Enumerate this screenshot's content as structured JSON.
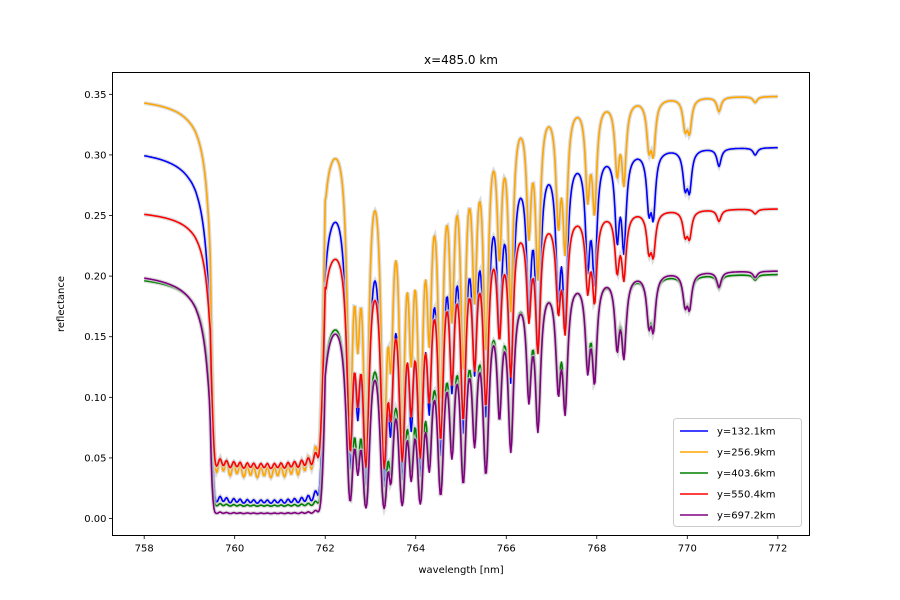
{
  "chart_data": {
    "type": "line",
    "title": "x=485.0 km",
    "xlabel": "wavelength [nm]",
    "ylabel": "reflectance",
    "xlim": [
      757.3,
      772.7
    ],
    "ylim": [
      -0.014,
      0.368
    ],
    "x_ticks": [
      758,
      760,
      762,
      764,
      766,
      768,
      770,
      772
    ],
    "x_tick_labels": [
      "758",
      "760",
      "762",
      "764",
      "766",
      "768",
      "770",
      "772"
    ],
    "y_ticks": [
      0.0,
      0.05,
      0.1,
      0.15,
      0.2,
      0.25,
      0.3,
      0.35
    ],
    "y_tick_labels": [
      "0.00",
      "0.05",
      "0.10",
      "0.15",
      "0.20",
      "0.25",
      "0.30",
      "0.35"
    ],
    "grid": false,
    "legend_position": "lower-right",
    "x_range": [
      758.0,
      772.0
    ],
    "band_edge_nm": 759.45,
    "series": [
      {
        "name": "y=132.1km",
        "color": "#0000ff",
        "baseline": 0.307,
        "path_factor": 1.0,
        "band_floor": 0.012
      },
      {
        "name": "y=256.9km",
        "color": "#ffa500",
        "baseline": 0.349,
        "path_factor": 0.72,
        "band_floor": 0.03
      },
      {
        "name": "y=403.6km",
        "color": "#008000",
        "baseline": 0.202,
        "path_factor": 1.15,
        "band_floor": 0.01
      },
      {
        "name": "y=550.4km",
        "color": "#ff0000",
        "baseline": 0.256,
        "path_factor": 0.82,
        "band_floor": 0.04
      },
      {
        "name": "y=697.2km",
        "color": "#800080",
        "baseline": 0.205,
        "path_factor": 1.3,
        "band_floor": 0.004
      }
    ],
    "absorption_lines_nm": [
      [
        759.6,
        3.0
      ],
      [
        759.75,
        2.4
      ],
      [
        759.9,
        3.2
      ],
      [
        760.05,
        2.6
      ],
      [
        760.2,
        3.4
      ],
      [
        760.35,
        2.8
      ],
      [
        760.5,
        3.5
      ],
      [
        760.65,
        2.9
      ],
      [
        760.8,
        3.5
      ],
      [
        760.95,
        2.9
      ],
      [
        761.1,
        3.3
      ],
      [
        761.25,
        2.7
      ],
      [
        761.4,
        3.0
      ],
      [
        761.55,
        2.4
      ],
      [
        761.7,
        2.4
      ],
      [
        761.85,
        1.6
      ],
      [
        762.55,
        1.9
      ],
      [
        762.72,
        0.9
      ],
      [
        762.9,
        2.3
      ],
      [
        763.3,
        2.3
      ],
      [
        763.45,
        1.1
      ],
      [
        763.7,
        2.1
      ],
      [
        763.9,
        1.1
      ],
      [
        764.1,
        2.0
      ],
      [
        764.3,
        1.0
      ],
      [
        764.55,
        1.7
      ],
      [
        764.8,
        0.9
      ],
      [
        765.05,
        1.4
      ],
      [
        765.3,
        0.8
      ],
      [
        765.55,
        1.25
      ],
      [
        765.85,
        0.6
      ],
      [
        766.1,
        0.95
      ],
      [
        766.5,
        0.5
      ],
      [
        766.7,
        0.75
      ],
      [
        767.15,
        0.45
      ],
      [
        767.3,
        0.6
      ],
      [
        767.8,
        0.35
      ],
      [
        767.95,
        0.42
      ],
      [
        768.45,
        0.26
      ],
      [
        768.6,
        0.3
      ],
      [
        769.15,
        0.16
      ],
      [
        769.25,
        0.18
      ],
      [
        769.95,
        0.1
      ],
      [
        770.05,
        0.11
      ],
      [
        770.7,
        0.05
      ],
      [
        771.5,
        0.02
      ]
    ]
  },
  "legend": {
    "entries": [
      "y=132.1km",
      "y=256.9km",
      "y=403.6km",
      "y=550.4km",
      "y=697.2km"
    ]
  }
}
